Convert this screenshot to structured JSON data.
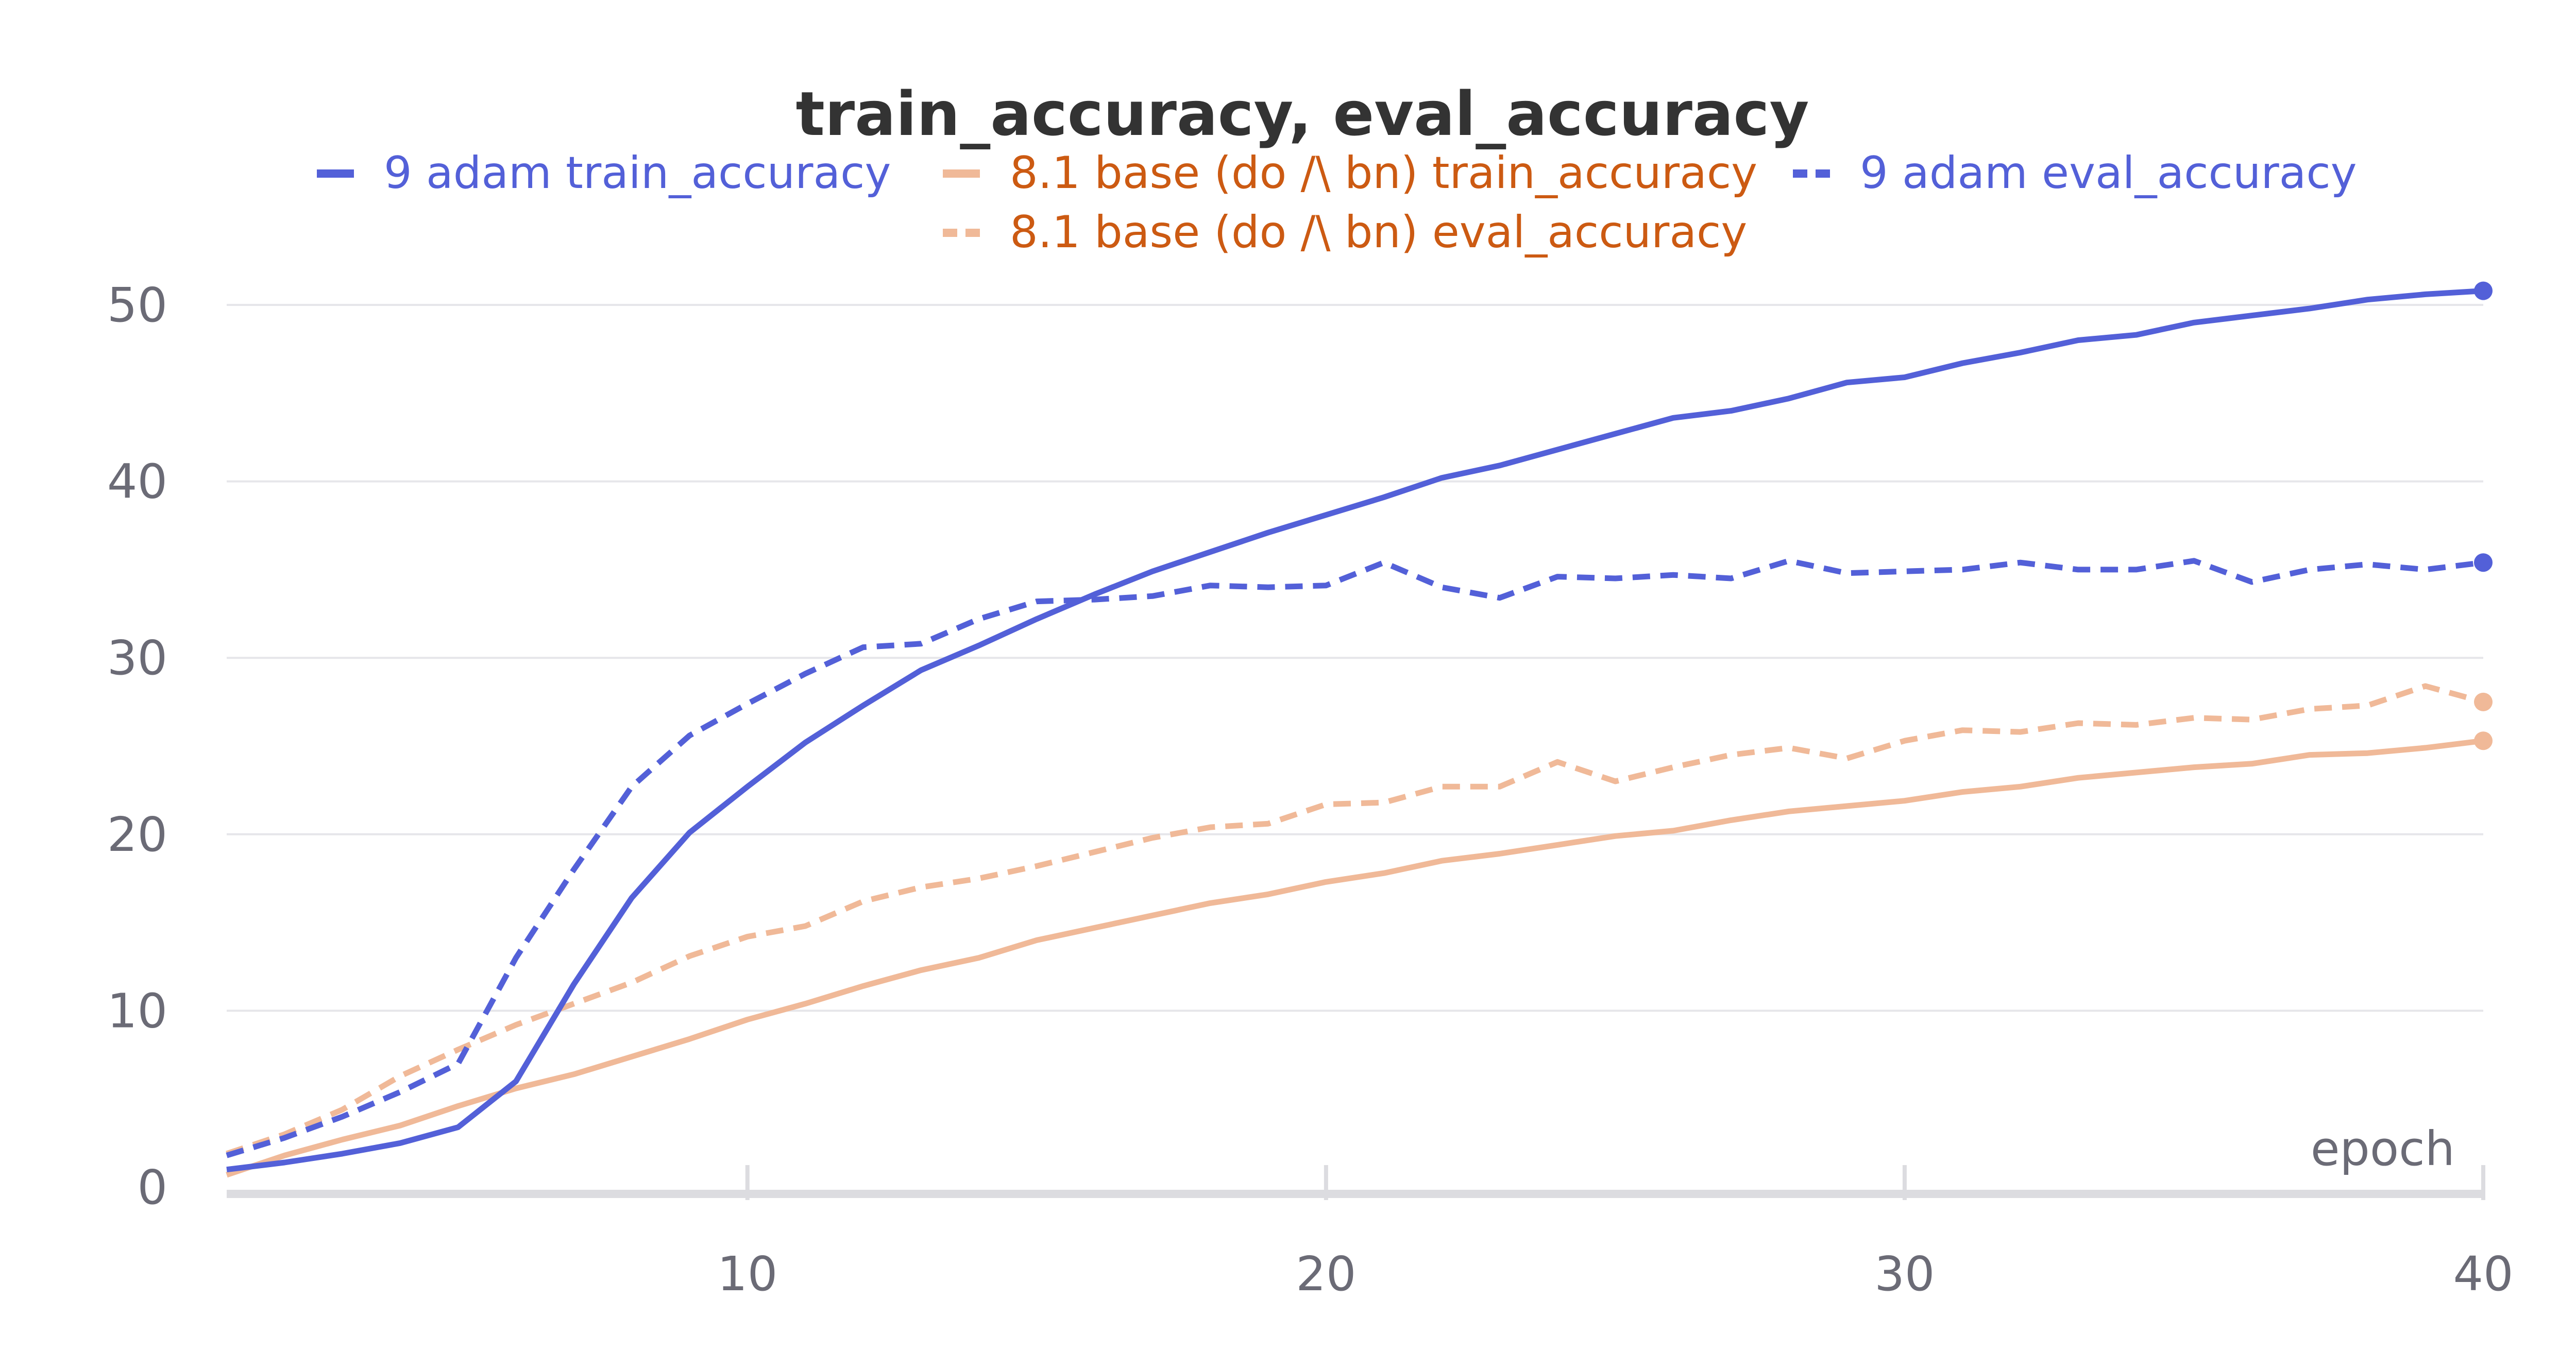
{
  "chart_data": {
    "type": "line",
    "title": "train_accuracy, eval_accuracy",
    "xlabel": "epoch",
    "ylabel": "",
    "xlim": [
      1,
      40
    ],
    "ylim": [
      0,
      52
    ],
    "x_ticks": [
      10,
      20,
      30,
      40
    ],
    "y_ticks": [
      0,
      10,
      20,
      30,
      40,
      50
    ],
    "grid": "horizontal",
    "legend_position": "top-center",
    "x": [
      1,
      2,
      3,
      4,
      5,
      6,
      7,
      8,
      9,
      10,
      11,
      12,
      13,
      14,
      15,
      16,
      17,
      18,
      19,
      20,
      21,
      22,
      23,
      24,
      25,
      26,
      27,
      28,
      29,
      30,
      31,
      32,
      33,
      34,
      35,
      36,
      37,
      38,
      39,
      40
    ],
    "series": [
      {
        "name": "9 adam train_accuracy",
        "color": "#5360d8",
        "legend_text_color": "#5360d8",
        "dash": "solid",
        "values": [
          1.0,
          1.4,
          1.9,
          2.5,
          3.4,
          6.0,
          11.5,
          16.4,
          20.1,
          22.7,
          25.2,
          27.3,
          29.3,
          30.7,
          32.2,
          33.6,
          34.9,
          36.0,
          37.1,
          38.1,
          39.1,
          40.2,
          40.9,
          41.8,
          42.7,
          43.6,
          44.0,
          44.7,
          45.6,
          45.9,
          46.7,
          47.3,
          48.0,
          48.3,
          49.0,
          49.4,
          49.8,
          50.3,
          50.6,
          50.8
        ]
      },
      {
        "name": "8.1 base (do /\\ bn) train_accuracy",
        "color": "#f0b998",
        "legend_text_color": "#cc5a12",
        "dash": "solid",
        "values": [
          0.7,
          1.8,
          2.7,
          3.5,
          4.6,
          5.6,
          6.4,
          7.4,
          8.4,
          9.5,
          10.4,
          11.4,
          12.3,
          13.0,
          14.0,
          14.7,
          15.4,
          16.1,
          16.6,
          17.3,
          17.8,
          18.5,
          18.9,
          19.4,
          19.9,
          20.2,
          20.8,
          21.3,
          21.6,
          21.9,
          22.4,
          22.7,
          23.2,
          23.5,
          23.8,
          24.0,
          24.5,
          24.6,
          24.9,
          25.3
        ]
      },
      {
        "name": "9 adam eval_accuracy",
        "color": "#5360d8",
        "legend_text_color": "#5360d8",
        "dash": "dashed",
        "values": [
          1.8,
          2.8,
          4.0,
          5.4,
          7.0,
          13.0,
          18.0,
          22.7,
          25.6,
          27.4,
          29.1,
          30.6,
          30.8,
          32.2,
          33.2,
          33.3,
          33.5,
          34.1,
          34.0,
          34.1,
          35.4,
          34.0,
          33.4,
          34.6,
          34.5,
          34.7,
          34.5,
          35.5,
          34.8,
          34.9,
          35.0,
          35.4,
          35.0,
          35.0,
          35.5,
          34.3,
          35.0,
          35.3,
          35.0,
          35.4
        ]
      },
      {
        "name": "8.1 base (do /\\ bn) eval_accuracy",
        "color": "#f0b998",
        "legend_text_color": "#cc5a12",
        "dash": "dashed",
        "values": [
          1.9,
          3.0,
          4.4,
          6.3,
          7.8,
          9.2,
          10.4,
          11.6,
          13.1,
          14.2,
          14.8,
          16.2,
          17.0,
          17.5,
          18.2,
          19.0,
          19.8,
          20.4,
          20.6,
          21.7,
          21.8,
          22.7,
          22.7,
          24.1,
          23.0,
          23.8,
          24.5,
          24.9,
          24.3,
          25.3,
          25.9,
          25.8,
          26.3,
          26.2,
          26.6,
          26.5,
          27.1,
          27.3,
          28.4,
          27.5
        ]
      }
    ]
  }
}
